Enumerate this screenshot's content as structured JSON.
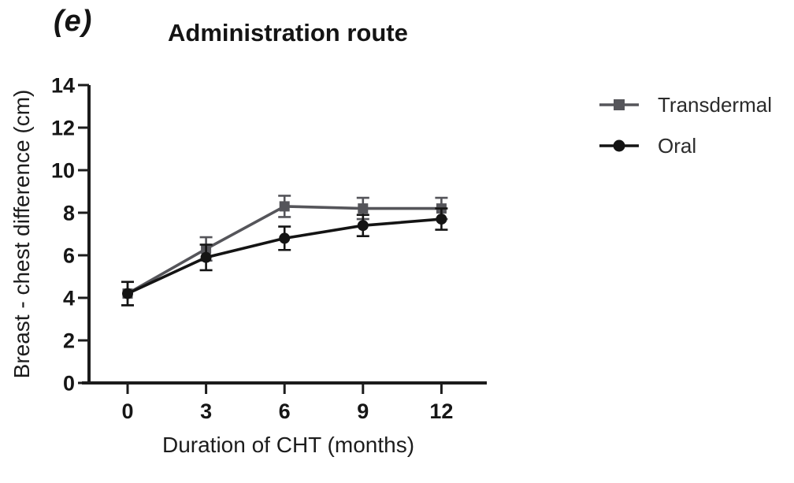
{
  "figure": {
    "panel_label": "(e)"
  },
  "chart_data": {
    "type": "line",
    "title": "Administration route",
    "xlabel": "Duration of CHT (months)",
    "ylabel": "Breast - chest difference (cm)",
    "x": [
      0,
      3,
      6,
      9,
      12
    ],
    "x_tick_labels": [
      "0",
      "3",
      "6",
      "9",
      "12"
    ],
    "y_ticks": [
      0,
      2,
      4,
      6,
      8,
      10,
      12,
      14
    ],
    "ylim": [
      0,
      14
    ],
    "xlim": [
      0,
      12
    ],
    "grid": false,
    "legend_position": "right-outside",
    "series": [
      {
        "name": "Transdermal",
        "marker": "square",
        "color": "#55555a",
        "values": [
          4.2,
          6.3,
          8.3,
          8.2,
          8.2
        ],
        "errors": [
          0.55,
          0.55,
          0.5,
          0.5,
          0.5
        ]
      },
      {
        "name": "Oral",
        "marker": "circle",
        "color": "#141414",
        "values": [
          4.2,
          5.9,
          6.8,
          7.4,
          7.7
        ],
        "errors": [
          0.55,
          0.6,
          0.55,
          0.5,
          0.5
        ]
      }
    ]
  },
  "colors": {
    "background": "#ffffff",
    "axis": "#1c1c1c",
    "text": "#1c1c1c"
  }
}
